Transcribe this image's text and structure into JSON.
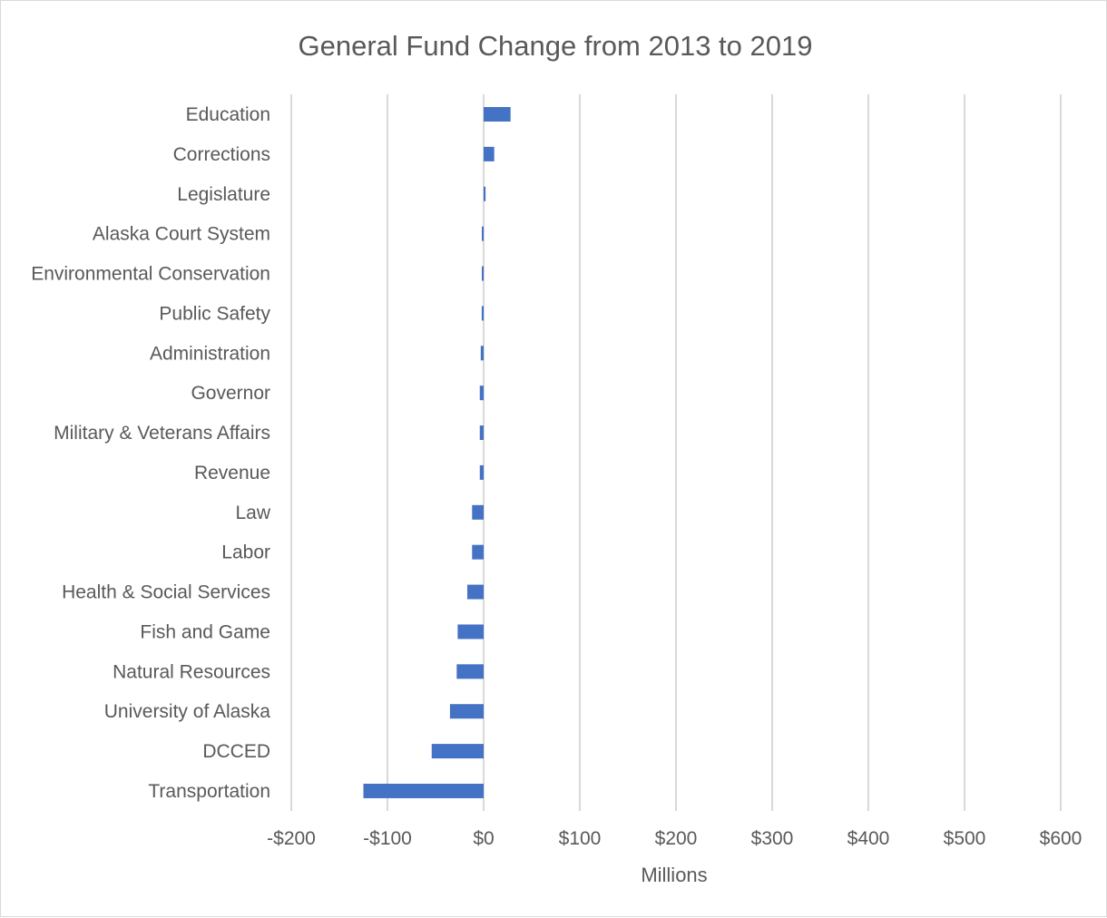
{
  "chart_data": {
    "type": "bar",
    "orientation": "horizontal",
    "title": "General Fund Change from 2013 to 2019",
    "xlabel": "Millions",
    "ylabel": "",
    "xlim": [
      -200,
      600
    ],
    "x_ticks": [
      -200,
      -100,
      0,
      100,
      200,
      300,
      400,
      500,
      600
    ],
    "x_tick_labels": [
      "-$200",
      "-$100",
      "$0",
      "$100",
      "$200",
      "$300",
      "$400",
      "$500",
      "$600"
    ],
    "grid": "vertical",
    "bar_color": "#4472c4",
    "categories": [
      "Education",
      "Corrections",
      "Legislature",
      "Alaska Court System",
      "Environmental Conservation",
      "Public Safety",
      "Administration",
      "Governor",
      "Military & Veterans Affairs",
      "Revenue",
      "Law",
      "Labor",
      "Health & Social Services",
      "Fish and Game",
      "Natural Resources",
      "University of Alaska",
      "DCCED",
      "Transportation"
    ],
    "values": [
      28,
      11,
      2,
      -1,
      -1,
      -2,
      -3,
      -4,
      -4,
      -4,
      -12,
      -12,
      -17,
      -27,
      -28,
      -35,
      -54,
      -125
    ]
  }
}
